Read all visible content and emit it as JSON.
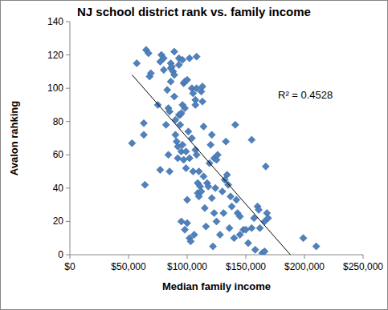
{
  "chart_data": {
    "type": "scatter",
    "title": "NJ school district rank vs. family income",
    "x_label": "Median family income",
    "y_label": "Avalon rahking",
    "annotation": "R² = 0.4528",
    "color": "#4f81bd",
    "marker": "diamond",
    "xlim": [
      0,
      250000
    ],
    "ylim": [
      0,
      140
    ],
    "xticks": [
      {
        "value": 0,
        "label": "$0"
      },
      {
        "value": 50000,
        "label": "$50,000"
      },
      {
        "value": 100000,
        "label": "$100,000"
      },
      {
        "value": 150000,
        "label": "$150,000"
      },
      {
        "value": 200000,
        "label": "$200,000"
      },
      {
        "value": 250000,
        "label": "$250,000"
      }
    ],
    "yticks": [
      0,
      20,
      40,
      60,
      80,
      100,
      120,
      140
    ],
    "grid": false,
    "x": [
      53000,
      57000,
      63000,
      63000,
      64000,
      65000,
      67000,
      68000,
      69000,
      75000,
      77000,
      77000,
      78000,
      80000,
      80000,
      82000,
      83000,
      84000,
      84000,
      85000,
      85000,
      86000,
      86000,
      86000,
      87000,
      88000,
      89000,
      89000,
      89000,
      90000,
      90000,
      91000,
      92000,
      92000,
      93000,
      93000,
      93000,
      94000,
      94000,
      95000,
      95000,
      95000,
      96000,
      96000,
      96000,
      97000,
      97000,
      98000,
      98000,
      98000,
      99000,
      99000,
      100000,
      100000,
      100000,
      101000,
      102000,
      102000,
      102000,
      103000,
      104000,
      104000,
      105000,
      105000,
      106000,
      107000,
      107000,
      107000,
      108000,
      108000,
      108000,
      109000,
      109000,
      110000,
      110000,
      111000,
      112000,
      112000,
      113000,
      113000,
      114000,
      114000,
      115000,
      116000,
      117000,
      118000,
      119000,
      120000,
      121000,
      121000,
      122000,
      123000,
      123000,
      124000,
      125000,
      125000,
      126000,
      128000,
      130000,
      131000,
      132000,
      133000,
      134000,
      135000,
      136000,
      137000,
      138000,
      140000,
      141000,
      142000,
      143000,
      145000,
      145000,
      148000,
      150000,
      152000,
      155000,
      155000,
      157000,
      158000,
      160000,
      161000,
      162000,
      164000,
      166000,
      166000,
      167000,
      168000,
      169000,
      199000,
      210000
    ],
    "values": [
      67,
      115,
      79,
      72,
      42,
      123,
      121,
      107,
      109,
      90,
      51,
      116,
      120,
      118,
      111,
      78,
      99,
      88,
      60,
      86,
      50,
      115,
      112,
      104,
      113,
      110,
      108,
      122,
      95,
      81,
      72,
      68,
      65,
      58,
      118,
      114,
      84,
      84,
      78,
      85,
      62,
      20,
      117,
      90,
      66,
      57,
      103,
      104,
      88,
      15,
      62,
      52,
      105,
      33,
      19,
      74,
      118,
      58,
      10,
      8,
      100,
      70,
      50,
      97,
      12,
      93,
      90,
      63,
      100,
      119,
      60,
      43,
      37,
      35,
      50,
      41,
      38,
      98,
      101,
      92,
      77,
      47,
      28,
      17,
      43,
      41,
      55,
      66,
      72,
      34,
      5,
      58,
      25,
      40,
      57,
      20,
      60,
      12,
      38,
      25,
      45,
      68,
      48,
      42,
      16,
      35,
      29,
      10,
      78,
      33,
      25,
      12,
      23,
      15,
      15,
      7,
      69,
      16,
      22,
      3,
      29,
      27,
      16,
      1,
      2,
      20,
      53,
      25,
      22,
      10,
      5
    ],
    "trendline": {
      "x": [
        53000,
        188000
      ],
      "values": [
        108,
        0
      ]
    }
  }
}
